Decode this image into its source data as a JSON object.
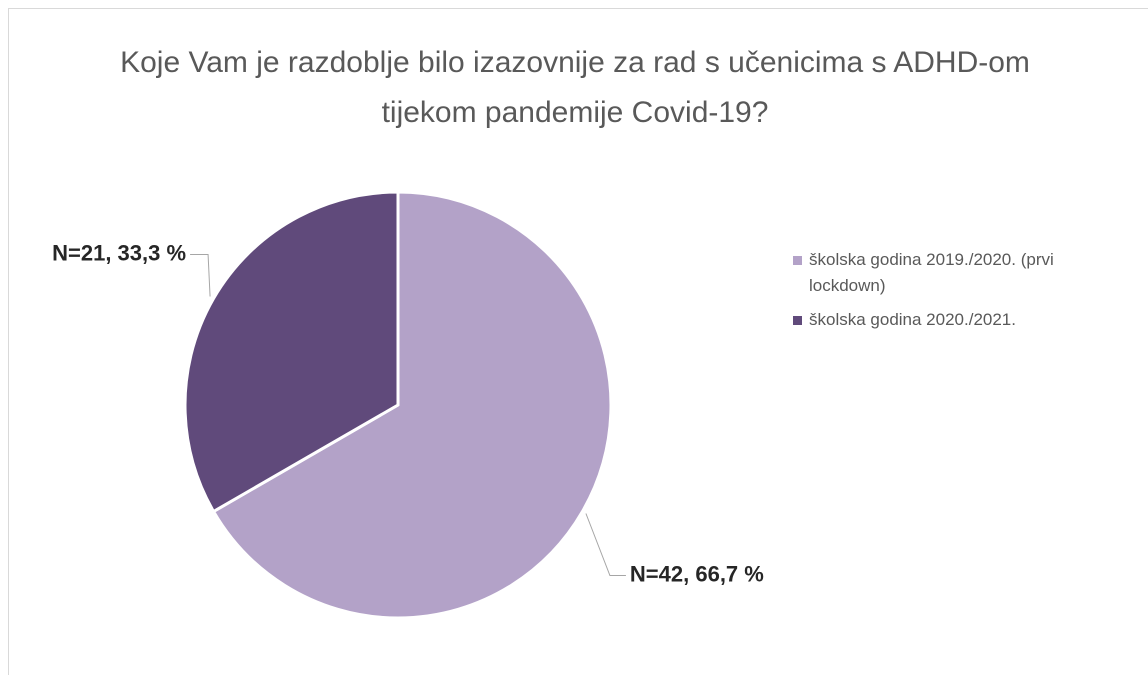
{
  "chart_data": {
    "type": "pie",
    "title": "Koje Vam je razdoblje bilo izazovnije za rad s učenicima s ADHD-om tijekom pandemije Covid-19?",
    "categories": [
      "školska godina 2019./2020. (prvi lockdown)",
      "školska godina 2020./2021."
    ],
    "values": [
      42,
      21
    ],
    "value_labels": [
      "N=42, 66,7 %",
      "N=21, 33,3 %"
    ],
    "colors": [
      "#b3a2c8",
      "#604a7b"
    ],
    "legend": "right"
  }
}
